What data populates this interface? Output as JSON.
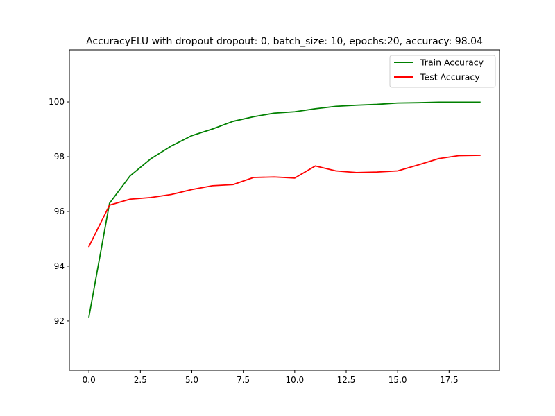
{
  "chart_data": {
    "type": "line",
    "title": "AccuracyELU with dropout dropout: 0, batch_size: 10, epochs:20, accuracy: 98.04",
    "xlabel": "",
    "ylabel": "",
    "xlim": [
      -0.95,
      19.95
    ],
    "ylim": [
      90.2,
      101.9
    ],
    "x_ticks": [
      0.0,
      2.5,
      5.0,
      7.5,
      10.0,
      12.5,
      15.0,
      17.5
    ],
    "x_tick_labels": [
      "0.0",
      "2.5",
      "5.0",
      "7.5",
      "10.0",
      "12.5",
      "15.0",
      "17.5"
    ],
    "y_ticks": [
      92,
      94,
      96,
      98,
      100
    ],
    "y_tick_labels": [
      "92",
      "94",
      "96",
      "98",
      "100"
    ],
    "grid": false,
    "legend_position": "top-right",
    "x": [
      0,
      1,
      2,
      3,
      4,
      5,
      6,
      7,
      8,
      9,
      10,
      11,
      12,
      13,
      14,
      15,
      16,
      17,
      18,
      19
    ],
    "series": [
      {
        "name": "Train Accuracy",
        "color": "#008000",
        "values": [
          92.15,
          96.3,
          97.3,
          97.92,
          98.39,
          98.77,
          99.01,
          99.29,
          99.46,
          99.59,
          99.64,
          99.75,
          99.84,
          99.88,
          99.91,
          99.96,
          99.97,
          99.99,
          99.99,
          99.99
        ]
      },
      {
        "name": "Test Accuracy",
        "color": "#ff0000",
        "values": [
          94.72,
          96.23,
          96.45,
          96.51,
          96.62,
          96.8,
          96.94,
          96.98,
          97.24,
          97.26,
          97.22,
          97.66,
          97.48,
          97.42,
          97.44,
          97.48,
          97.7,
          97.93,
          98.04,
          98.05
        ]
      }
    ]
  }
}
